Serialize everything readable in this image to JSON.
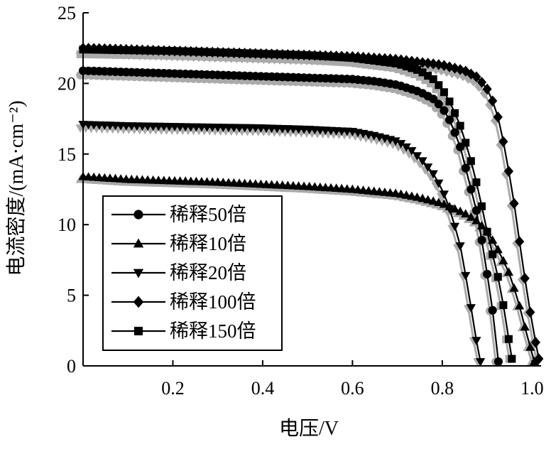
{
  "chart_data": {
    "type": "line",
    "title": "",
    "xlabel": "电压/V",
    "ylabel": "电流密度/(mA·cm⁻²)",
    "xlim": [
      0,
      1.02
    ],
    "ylim": [
      0,
      25
    ],
    "xticks": [
      0.2,
      0.4,
      0.6,
      0.8,
      1.0
    ],
    "xtick_labels": [
      "0.2",
      "0.4",
      "0.6",
      "0.8",
      "1.0"
    ],
    "yticks": [
      0,
      5,
      10,
      15,
      20,
      25
    ],
    "ytick_labels": [
      "0",
      "5",
      "10",
      "15",
      "20",
      "25"
    ],
    "grid": false,
    "legend_position": "bottom-left",
    "series": [
      {
        "name": "稀释50倍",
        "marker": "circle",
        "color": "#000000",
        "points": [
          [
            0.0,
            20.9
          ],
          [
            0.1,
            20.8
          ],
          [
            0.2,
            20.7
          ],
          [
            0.3,
            20.6
          ],
          [
            0.4,
            20.5
          ],
          [
            0.5,
            20.4
          ],
          [
            0.6,
            20.3
          ],
          [
            0.65,
            20.15
          ],
          [
            0.7,
            19.9
          ],
          [
            0.75,
            19.4
          ],
          [
            0.78,
            18.9
          ],
          [
            0.8,
            18.3
          ],
          [
            0.82,
            17.2
          ],
          [
            0.84,
            15.5
          ],
          [
            0.86,
            13.0
          ],
          [
            0.88,
            10.5
          ],
          [
            0.9,
            6.5
          ],
          [
            0.91,
            4.5
          ],
          [
            0.925,
            0.3
          ]
        ]
      },
      {
        "name": "稀释10倍",
        "marker": "triangle-up",
        "color": "#000000",
        "points": [
          [
            0.0,
            13.4
          ],
          [
            0.1,
            13.2
          ],
          [
            0.2,
            13.1
          ],
          [
            0.3,
            13.0
          ],
          [
            0.4,
            12.85
          ],
          [
            0.5,
            12.7
          ],
          [
            0.6,
            12.5
          ],
          [
            0.7,
            12.2
          ],
          [
            0.75,
            11.9
          ],
          [
            0.8,
            11.5
          ],
          [
            0.85,
            10.8
          ],
          [
            0.88,
            10.2
          ],
          [
            0.9,
            9.5
          ],
          [
            0.92,
            8.5
          ],
          [
            0.95,
            6.5
          ],
          [
            0.97,
            4.5
          ],
          [
            0.99,
            2.0
          ],
          [
            1.005,
            0.3
          ]
        ]
      },
      {
        "name": "稀释20倍",
        "marker": "triangle-down",
        "color": "#000000",
        "points": [
          [
            0.0,
            17.1
          ],
          [
            0.1,
            17.0
          ],
          [
            0.2,
            16.95
          ],
          [
            0.3,
            16.9
          ],
          [
            0.4,
            16.85
          ],
          [
            0.5,
            16.75
          ],
          [
            0.6,
            16.6
          ],
          [
            0.65,
            16.3
          ],
          [
            0.7,
            15.9
          ],
          [
            0.73,
            15.3
          ],
          [
            0.76,
            14.4
          ],
          [
            0.78,
            13.6
          ],
          [
            0.8,
            12.5
          ],
          [
            0.82,
            10.8
          ],
          [
            0.84,
            8.5
          ],
          [
            0.86,
            5.0
          ],
          [
            0.87,
            2.8
          ],
          [
            0.885,
            0.3
          ]
        ]
      },
      {
        "name": "稀释100倍",
        "marker": "diamond",
        "color": "#000000",
        "points": [
          [
            0.0,
            22.5
          ],
          [
            0.1,
            22.4
          ],
          [
            0.2,
            22.3
          ],
          [
            0.3,
            22.2
          ],
          [
            0.4,
            22.1
          ],
          [
            0.5,
            22.0
          ],
          [
            0.6,
            21.9
          ],
          [
            0.7,
            21.7
          ],
          [
            0.8,
            21.3
          ],
          [
            0.85,
            20.9
          ],
          [
            0.88,
            20.4
          ],
          [
            0.9,
            19.6
          ],
          [
            0.92,
            18.2
          ],
          [
            0.94,
            15.3
          ],
          [
            0.96,
            11.5
          ],
          [
            0.98,
            7.0
          ],
          [
            1.0,
            3.0
          ],
          [
            1.015,
            0.5
          ]
        ]
      },
      {
        "name": "稀释150倍",
        "marker": "square",
        "color": "#000000",
        "points": [
          [
            0.0,
            22.4
          ],
          [
            0.1,
            22.35
          ],
          [
            0.2,
            22.3
          ],
          [
            0.3,
            22.2
          ],
          [
            0.4,
            22.1
          ],
          [
            0.5,
            22.0
          ],
          [
            0.6,
            21.8
          ],
          [
            0.7,
            21.4
          ],
          [
            0.75,
            20.9
          ],
          [
            0.78,
            20.3
          ],
          [
            0.8,
            19.6
          ],
          [
            0.82,
            18.5
          ],
          [
            0.84,
            17.0
          ],
          [
            0.86,
            15.0
          ],
          [
            0.88,
            12.5
          ],
          [
            0.9,
            9.5
          ],
          [
            0.93,
            5.5
          ],
          [
            0.955,
            0.5
          ]
        ]
      }
    ],
    "shadow_color": "#aaaaaa"
  }
}
